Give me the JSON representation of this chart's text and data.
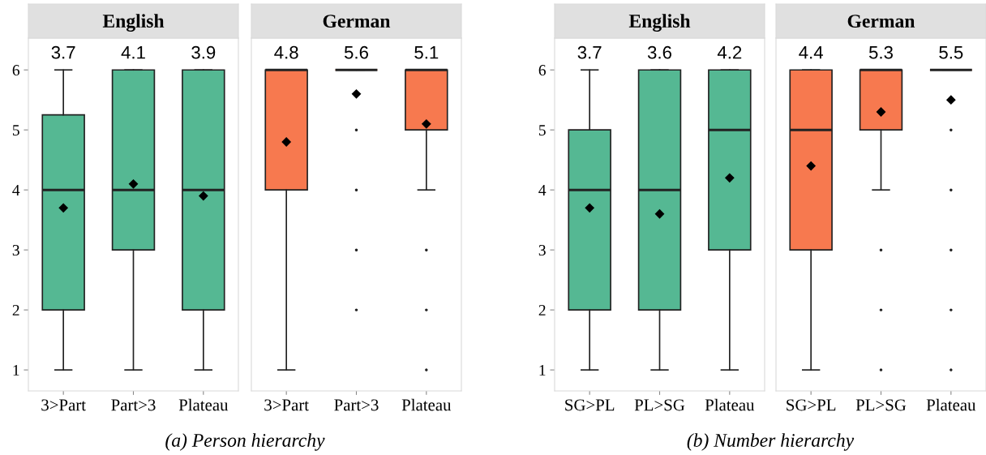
{
  "chart_data": [
    {
      "type": "box",
      "title": "English",
      "categories": [
        "3>Part",
        "Part>3",
        "Plateau"
      ],
      "color": "#55b893",
      "ylim": [
        0.65,
        6.53
      ],
      "yticks": [
        1,
        2,
        3,
        4,
        5,
        6
      ],
      "value_labels": [
        "3.7",
        "4.1",
        "3.9"
      ],
      "annotations": [
        "(a) Person hierarchy"
      ],
      "boxes": [
        {
          "low": 1,
          "q1": 2,
          "median": 4,
          "q3": 5.25,
          "high": 6,
          "mean": 3.7
        },
        {
          "low": 1,
          "q1": 3,
          "median": 4,
          "q3": 6,
          "high": 6,
          "mean": 4.1
        },
        {
          "low": 1,
          "q1": 2,
          "median": 4,
          "q3": 6,
          "high": 6,
          "mean": 3.9
        }
      ]
    },
    {
      "type": "box",
      "title": "German",
      "categories": [
        "3>Part",
        "Part>3",
        "Plateau"
      ],
      "color": "#f7794f",
      "ylim": [
        0.65,
        6.53
      ],
      "yticks": [
        1,
        2,
        3,
        4,
        5,
        6
      ],
      "tick_labels": "x",
      "value_labels": [
        "4.8",
        "5.6",
        "5.1"
      ],
      "boxes": [
        {
          "low": 1,
          "q1": 4,
          "median": 6,
          "q3": 6,
          "high": 6,
          "mean": 4.8
        },
        {
          "low": 6,
          "q1": 6,
          "median": 6,
          "q3": 6,
          "high": 6,
          "mean": 5.6,
          "outliers": [
            5,
            4,
            3,
            2
          ]
        },
        {
          "low": 4,
          "q1": 5,
          "median": 6,
          "q3": 6,
          "high": 6,
          "mean": 5.1,
          "outliers": [
            3,
            2,
            1
          ]
        }
      ]
    },
    {
      "type": "box",
      "title": "English",
      "categories": [
        "SG>PL",
        "PL>SG",
        "Plateau"
      ],
      "color": "#55b893",
      "ylim": [
        0.65,
        6.53
      ],
      "yticks": [
        1,
        2,
        3,
        4,
        5,
        6
      ],
      "value_labels": [
        "3.7",
        "3.6",
        "4.2"
      ],
      "annotations": [
        "(b) Number hierarchy"
      ],
      "boxes": [
        {
          "low": 1,
          "q1": 2,
          "median": 4,
          "q3": 5,
          "high": 6,
          "mean": 3.7
        },
        {
          "low": 1,
          "q1": 2,
          "median": 4,
          "q3": 6,
          "high": 6,
          "mean": 3.6
        },
        {
          "low": 1,
          "q1": 3,
          "median": 5,
          "q3": 6,
          "high": 6,
          "mean": 4.2
        }
      ]
    },
    {
      "type": "box",
      "title": "German",
      "categories": [
        "SG>PL",
        "PL>SG",
        "Plateau"
      ],
      "color": "#f7794f",
      "ylim": [
        0.65,
        6.53
      ],
      "yticks": [
        1,
        2,
        3,
        4,
        5,
        6
      ],
      "tick_labels": "x",
      "value_labels": [
        "4.4",
        "5.3",
        "5.5"
      ],
      "boxes": [
        {
          "low": 1,
          "q1": 3,
          "median": 5,
          "q3": 6,
          "high": 6,
          "mean": 4.4
        },
        {
          "low": 4,
          "q1": 5,
          "median": 6,
          "q3": 6,
          "high": 6,
          "mean": 5.3,
          "outliers": [
            3,
            2,
            1
          ]
        },
        {
          "low": 6,
          "q1": 6,
          "median": 6,
          "q3": 6,
          "high": 6,
          "mean": 5.5,
          "outliers": [
            5,
            4,
            3,
            2,
            1
          ]
        }
      ]
    }
  ]
}
